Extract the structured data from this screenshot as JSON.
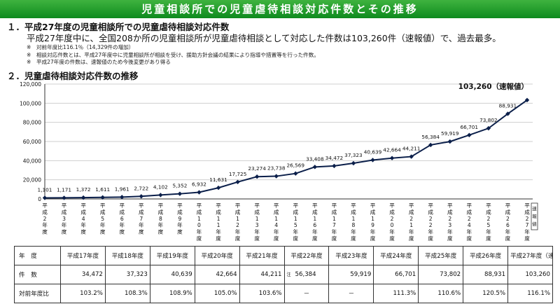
{
  "banner": "児童相談所での児童虐待相談対応件数とその推移",
  "section1": {
    "heading": "１．平成27年度の児童相談所での児童虐待相談対応件数",
    "lead": "平成27年度中に、全国208か所の児童相談所が児童虐待相談として対応した件数は103,260件（速報値）で、過去最多。",
    "notes": [
      "※　対前年度比116.1％（14,329件の増加）",
      "※　相談対応件数とは、平成27年度中に児童相談所が相談を受け、援助方針会議の結果により指導や措置等を行った件数。",
      "※　平成27年度の件数は、速報値のため今後変更があり得る"
    ]
  },
  "section2": {
    "heading": "２．児童虐待相談対応件数の推移"
  },
  "chart_data": {
    "type": "line",
    "categories": [
      "平成2年度",
      "平成3年度",
      "平成4年度",
      "平成5年度",
      "平成6年度",
      "平成7年度",
      "平成8年度",
      "平成9年度",
      "平成10年度",
      "平成11年度",
      "平成12年度",
      "平成13年度",
      "平成14年度",
      "平成15年度",
      "平成16年度",
      "平成17年度",
      "平成18年度",
      "平成19年度",
      "平成20年度",
      "平成21年度",
      "平成22年度",
      "平成23年度",
      "平成24年度",
      "平成25年度",
      "平成26年度",
      "平成27年度(速報値)"
    ],
    "tick_labels": [
      "平成2年度",
      "平成3年度",
      "平成4年度",
      "平成5年度",
      "平成6年度",
      "平成7年度",
      "平成8年度",
      "平成9年度",
      "平成10年度",
      "平成11年度",
      "平成12年度",
      "平成13年度",
      "平成14年度",
      "平成15年度",
      "平成16年度",
      "平成17年度",
      "平成18年度",
      "平成19年度",
      "平成20年度",
      "平成21年度",
      "平成22年度",
      "平成23年度",
      "平成24年度",
      "平成25年度",
      "平成26年度",
      "平成27年度"
    ],
    "last_tick_box": "速報値",
    "values": [
      1101,
      1171,
      1372,
      1611,
      1961,
      2722,
      4102,
      5352,
      6932,
      11631,
      17725,
      23274,
      23738,
      26569,
      33408,
      34472,
      37323,
      40639,
      42664,
      44211,
      56384,
      59919,
      66701,
      73802,
      88931,
      103260
    ],
    "data_labels": [
      "1,101",
      "1,171",
      "1,372",
      "1,611",
      "1,961",
      "2,722",
      "4,102",
      "5,352",
      "6,932",
      "11,631",
      "17,725",
      "23,274",
      "23,738",
      "26,569",
      "33,408",
      "34,472",
      "37,323",
      "40,639",
      "42,664",
      "44,211",
      "56,384",
      "59,919",
      "66,701",
      "73,802",
      "88,931",
      "103,260（速報値）"
    ],
    "ylim": [
      0,
      120000
    ],
    "yticks": [
      "0",
      "20,000",
      "40,000",
      "60,000",
      "80,000",
      "100,000",
      "120,000"
    ],
    "grid": true,
    "line_color": "#0b1f4a",
    "marker_color": "#0b1f4a"
  },
  "table": {
    "headers": [
      "年　度",
      "平成17年度",
      "平成18年度",
      "平成19年度",
      "平成20年度",
      "平成21年度",
      "平成22年度",
      "平成23年度",
      "平成24年度",
      "平成25年度",
      "平成26年度",
      "平成27年度（速報値）"
    ],
    "count_label": "件　数",
    "counts": [
      "34,472",
      "37,323",
      "40,639",
      "42,664",
      "44,211",
      "56,384",
      "59,919",
      "66,701",
      "73,802",
      "88,931",
      "103,260"
    ],
    "note_mark": "注",
    "ratio_label": "対前年度比",
    "ratios": [
      "103.2%",
      "108.3%",
      "108.9%",
      "105.0%",
      "103.6%",
      "－",
      "－",
      "111.3%",
      "110.6%",
      "120.5%",
      "116.1%"
    ]
  }
}
